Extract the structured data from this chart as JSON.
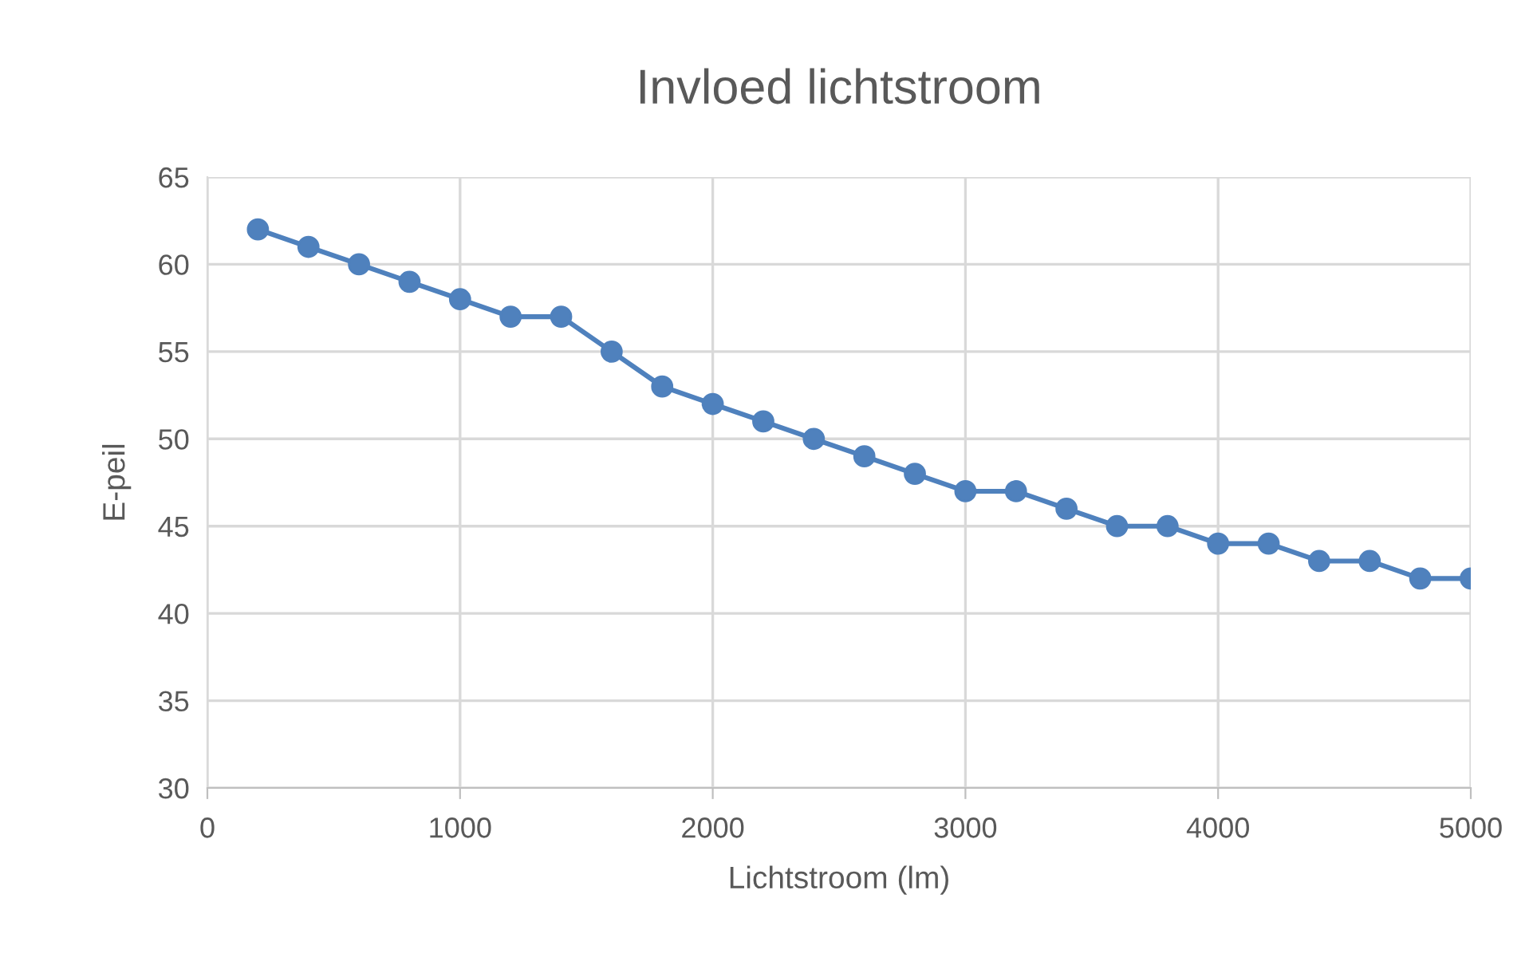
{
  "chart_data": {
    "type": "line",
    "title": "Invloed lichtstroom",
    "xlabel": "Lichtstroom (lm)",
    "ylabel": "E-peil",
    "x": [
      200,
      400,
      600,
      800,
      1000,
      1200,
      1400,
      1600,
      1800,
      2000,
      2200,
      2400,
      2600,
      2800,
      3000,
      3200,
      3400,
      3600,
      3800,
      4000,
      4200,
      4400,
      4600,
      4800,
      5000
    ],
    "series": [
      {
        "color": "#4f81bd",
        "values": [
          62,
          61,
          60,
          59,
          58,
          57,
          57,
          55,
          53,
          52,
          51,
          50,
          49,
          48,
          47,
          47,
          46,
          45,
          45,
          44,
          44,
          43,
          43,
          42,
          42
        ]
      }
    ],
    "xlim": [
      0,
      5000
    ],
    "xticks": [
      0,
      1000,
      2000,
      3000,
      4000,
      5000
    ],
    "ylim": [
      30,
      65
    ],
    "yticks": [
      30,
      35,
      40,
      45,
      50,
      55,
      60,
      65
    ],
    "grid": true,
    "marker": "circle",
    "line_style": "solid",
    "legend": false
  }
}
